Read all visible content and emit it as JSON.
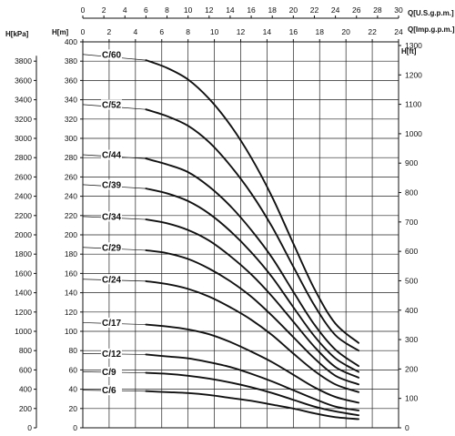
{
  "chart_data": {
    "type": "line",
    "title": "",
    "axes": {
      "q_us_gpm": {
        "label": "Q[U.S.g.p.m.]",
        "min": 0,
        "max": 30,
        "ticks": [
          0,
          2,
          4,
          6,
          8,
          10,
          12,
          14,
          16,
          18,
          20,
          22,
          24,
          26,
          28,
          30
        ]
      },
      "q_imp_gpm": {
        "label": "Q[Imp.g.p.m.]",
        "min": 0,
        "max": 24,
        "ticks": [
          0,
          2,
          4,
          6,
          8,
          10,
          12,
          14,
          16,
          18,
          20,
          22,
          24
        ]
      },
      "h_kpa": {
        "label": "H[kPa]",
        "min": 0,
        "max": 3800,
        "ticks": [
          0,
          200,
          400,
          600,
          800,
          1000,
          1200,
          1400,
          1600,
          1800,
          2000,
          2200,
          2400,
          2600,
          2800,
          3000,
          3200,
          3400,
          3600,
          3800
        ]
      },
      "h_m": {
        "label": "H[m]",
        "min": 0,
        "max": 400,
        "ticks": [
          0,
          20,
          40,
          60,
          80,
          100,
          120,
          140,
          160,
          180,
          200,
          220,
          240,
          260,
          280,
          300,
          320,
          340,
          360,
          380,
          400
        ]
      },
      "h_ft": {
        "label": "H[ft]",
        "min": 0,
        "max": 1300,
        "ticks": [
          0,
          100,
          200,
          300,
          400,
          500,
          600,
          700,
          800,
          900,
          1000,
          1100,
          1200,
          1300
        ]
      }
    },
    "x_units": "Q[U.S.g.p.m.]",
    "y_units": "H[m]",
    "grid": true,
    "series": [
      {
        "name": "C/60",
        "points": [
          [
            0,
            387
          ],
          [
            6,
            381
          ],
          [
            8,
            373
          ],
          [
            10,
            361
          ],
          [
            12,
            341
          ],
          [
            14,
            314
          ],
          [
            16,
            280
          ],
          [
            18,
            239
          ],
          [
            20,
            191
          ],
          [
            22,
            144
          ],
          [
            24,
            108
          ],
          [
            26.2,
            88
          ]
        ]
      },
      {
        "name": "C/52",
        "points": [
          [
            0,
            335
          ],
          [
            6,
            330
          ],
          [
            8,
            323
          ],
          [
            10,
            313
          ],
          [
            12,
            296
          ],
          [
            14,
            272
          ],
          [
            16,
            243
          ],
          [
            18,
            208
          ],
          [
            20,
            167
          ],
          [
            22,
            127
          ],
          [
            24,
            96
          ],
          [
            26.2,
            80
          ]
        ]
      },
      {
        "name": "C/44",
        "points": [
          [
            0,
            283
          ],
          [
            6,
            279
          ],
          [
            8,
            273
          ],
          [
            10,
            265
          ],
          [
            12,
            250
          ],
          [
            14,
            230
          ],
          [
            16,
            205
          ],
          [
            18,
            176
          ],
          [
            20,
            141
          ],
          [
            22,
            107
          ],
          [
            24,
            81
          ],
          [
            26.2,
            64
          ]
        ]
      },
      {
        "name": "C/39",
        "points": [
          [
            0,
            252
          ],
          [
            6,
            248
          ],
          [
            8,
            243
          ],
          [
            10,
            235
          ],
          [
            12,
            222
          ],
          [
            14,
            204
          ],
          [
            16,
            182
          ],
          [
            18,
            156
          ],
          [
            20,
            125
          ],
          [
            22,
            95
          ],
          [
            24,
            72
          ],
          [
            26.2,
            58
          ]
        ]
      },
      {
        "name": "C/34",
        "points": [
          [
            0,
            219
          ],
          [
            6,
            216
          ],
          [
            8,
            212
          ],
          [
            10,
            205
          ],
          [
            12,
            194
          ],
          [
            14,
            178
          ],
          [
            16,
            159
          ],
          [
            18,
            136
          ],
          [
            20,
            110
          ],
          [
            22,
            84
          ],
          [
            24,
            63
          ],
          [
            26.2,
            52
          ]
        ]
      },
      {
        "name": "C/29",
        "points": [
          [
            0,
            187
          ],
          [
            6,
            184
          ],
          [
            8,
            181
          ],
          [
            10,
            175
          ],
          [
            12,
            165
          ],
          [
            14,
            152
          ],
          [
            16,
            136
          ],
          [
            18,
            116
          ],
          [
            20,
            94
          ],
          [
            22,
            72
          ],
          [
            24,
            54
          ],
          [
            26.2,
            45
          ]
        ]
      },
      {
        "name": "C/24",
        "points": [
          [
            0,
            154
          ],
          [
            6,
            152
          ],
          [
            8,
            149
          ],
          [
            10,
            144
          ],
          [
            12,
            136
          ],
          [
            14,
            125
          ],
          [
            16,
            112
          ],
          [
            18,
            96
          ],
          [
            20,
            77
          ],
          [
            22,
            59
          ],
          [
            24,
            45
          ],
          [
            26.2,
            37
          ]
        ]
      },
      {
        "name": "C/17",
        "points": [
          [
            0,
            109
          ],
          [
            6,
            107
          ],
          [
            8,
            105
          ],
          [
            10,
            102
          ],
          [
            12,
            97
          ],
          [
            14,
            89
          ],
          [
            16,
            79
          ],
          [
            18,
            68
          ],
          [
            20,
            55
          ],
          [
            22,
            42
          ],
          [
            24,
            32
          ],
          [
            26.2,
            26
          ]
        ]
      },
      {
        "name": "C/12",
        "points": [
          [
            0,
            77
          ],
          [
            6,
            76
          ],
          [
            8,
            74
          ],
          [
            10,
            72
          ],
          [
            12,
            68
          ],
          [
            14,
            63
          ],
          [
            16,
            56
          ],
          [
            18,
            48
          ],
          [
            20,
            39
          ],
          [
            22,
            30
          ],
          [
            24,
            22
          ],
          [
            26.2,
            18
          ]
        ]
      },
      {
        "name": "C/9",
        "points": [
          [
            0,
            58
          ],
          [
            6,
            57
          ],
          [
            8,
            56
          ],
          [
            10,
            54
          ],
          [
            12,
            51
          ],
          [
            14,
            47
          ],
          [
            16,
            42
          ],
          [
            18,
            36
          ],
          [
            20,
            29
          ],
          [
            22,
            22
          ],
          [
            24,
            17
          ],
          [
            26.2,
            13
          ]
        ]
      },
      {
        "name": "C/6",
        "points": [
          [
            0,
            39
          ],
          [
            6,
            38
          ],
          [
            8,
            37
          ],
          [
            10,
            36
          ],
          [
            12,
            34
          ],
          [
            14,
            31
          ],
          [
            16,
            28
          ],
          [
            18,
            24
          ],
          [
            20,
            20
          ],
          [
            22,
            15
          ],
          [
            24,
            11
          ],
          [
            26.2,
            9
          ]
        ]
      }
    ]
  }
}
